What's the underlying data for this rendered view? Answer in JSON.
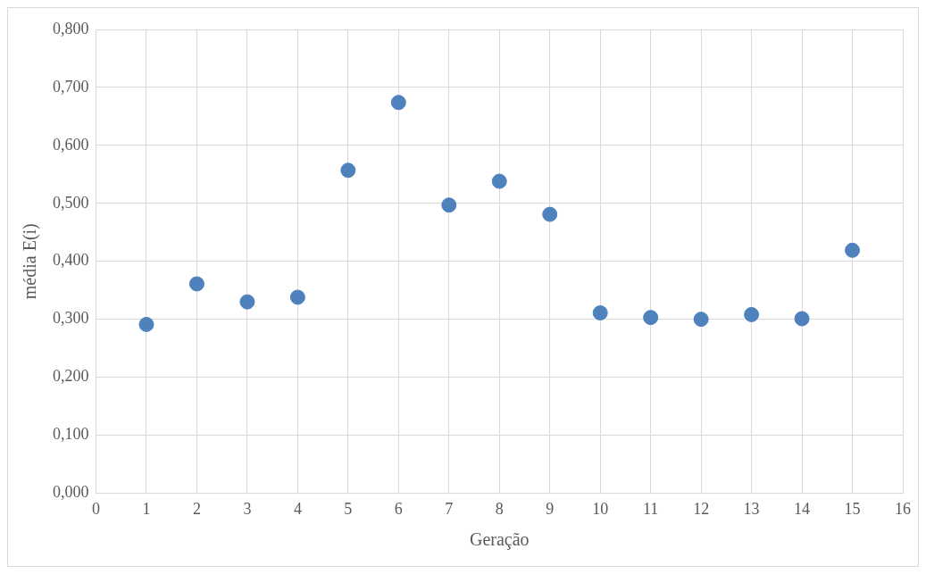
{
  "chart_data": {
    "type": "scatter",
    "xlabel": "Geração",
    "ylabel": "média E(i)",
    "x": [
      1,
      2,
      3,
      4,
      5,
      6,
      7,
      8,
      9,
      10,
      11,
      12,
      13,
      14,
      15
    ],
    "series": [
      {
        "color": "#4f81bd",
        "values": [
          0.291,
          0.361,
          0.33,
          0.338,
          0.557,
          0.674,
          0.497,
          0.538,
          0.481,
          0.311,
          0.303,
          0.3,
          0.308,
          0.301,
          0.419
        ]
      }
    ],
    "xlim": [
      0,
      16
    ],
    "xticks": [
      0,
      1,
      2,
      3,
      4,
      5,
      6,
      7,
      8,
      9,
      10,
      11,
      12,
      13,
      14,
      15,
      16
    ],
    "ylim": [
      0,
      0.8
    ],
    "yticks": [
      {
        "value": 0,
        "label": "0,000"
      },
      {
        "value": 0.1,
        "label": "0,100"
      },
      {
        "value": 0.2,
        "label": "0,200"
      },
      {
        "value": 0.3,
        "label": "0,300"
      },
      {
        "value": 0.4,
        "label": "0,400"
      },
      {
        "value": 0.5,
        "label": "0,500"
      },
      {
        "value": 0.6,
        "label": "0,600"
      },
      {
        "value": 0.7,
        "label": "0,700"
      },
      {
        "value": 0.8,
        "label": "0,800"
      }
    ],
    "grid": true,
    "legend": false,
    "marker": "circle"
  }
}
